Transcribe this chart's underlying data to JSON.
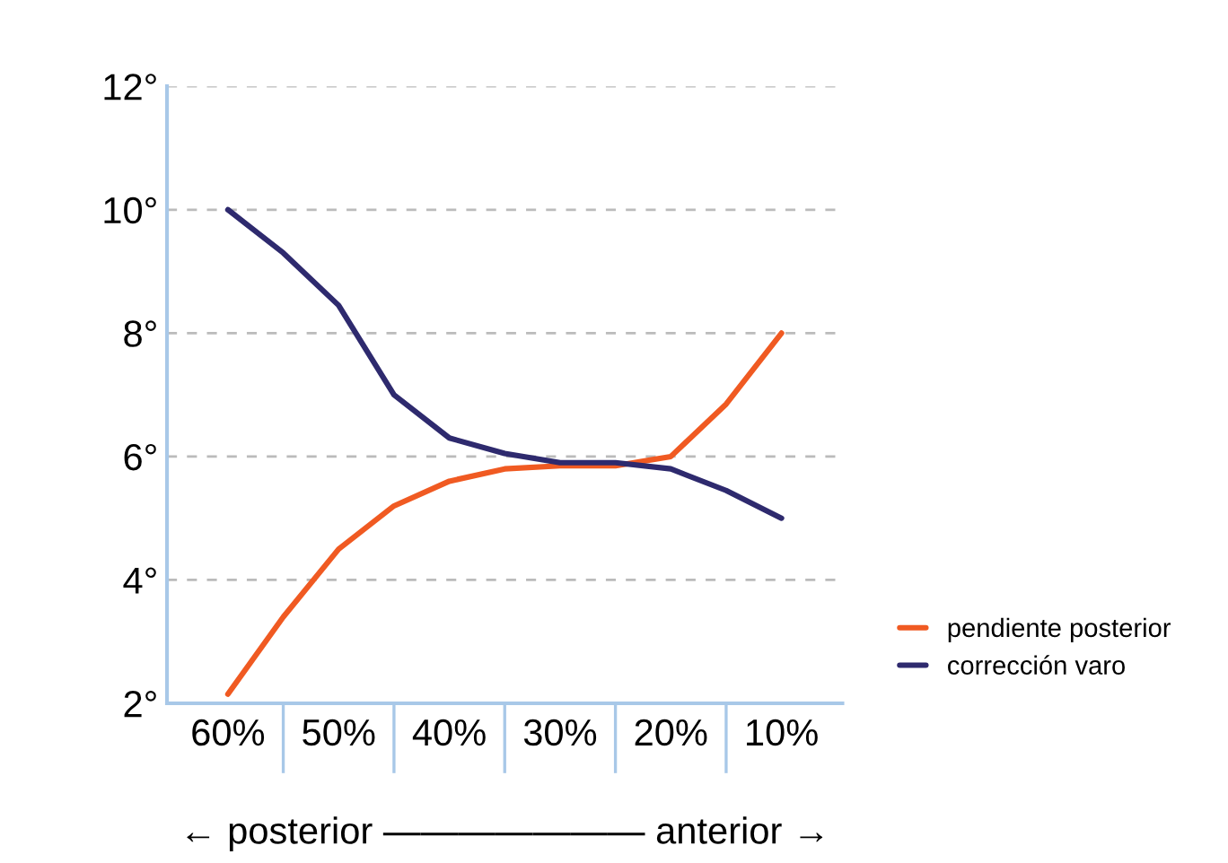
{
  "chart_data": {
    "type": "line",
    "xlabel": "← posterior ——————— anterior →",
    "x": [
      60,
      55,
      50,
      45,
      40,
      35,
      30,
      25,
      20,
      15,
      10
    ],
    "series": [
      {
        "name": "pendiente posterior",
        "color": "#f05a22",
        "values": [
          2.15,
          3.4,
          4.5,
          5.2,
          5.6,
          5.8,
          5.85,
          5.85,
          6.0,
          6.85,
          8.0
        ]
      },
      {
        "name": "corrección varo",
        "color": "#2e2a6e",
        "values": [
          10.0,
          9.3,
          8.45,
          7.0,
          6.3,
          6.05,
          5.9,
          5.9,
          5.8,
          5.45,
          5.0
        ]
      }
    ],
    "xlim": [
      65.5,
      4.5
    ],
    "xticks": [
      {
        "value": 60,
        "label": "60%"
      },
      {
        "value": 50,
        "label": "50%"
      },
      {
        "value": 40,
        "label": "40%"
      },
      {
        "value": 30,
        "label": "30%"
      },
      {
        "value": 20,
        "label": "20%"
      },
      {
        "value": 10,
        "label": "10%"
      }
    ],
    "ylim": [
      2,
      12
    ],
    "yticks": [
      {
        "value": 2,
        "label": "2°"
      },
      {
        "value": 4,
        "label": "4°"
      },
      {
        "value": 6,
        "label": "6°"
      },
      {
        "value": 8,
        "label": "8°"
      },
      {
        "value": 10,
        "label": "10°"
      },
      {
        "value": 12,
        "label": "12°"
      }
    ],
    "grid": "y",
    "legend": "right",
    "marker": "none",
    "line_style": "solid"
  }
}
